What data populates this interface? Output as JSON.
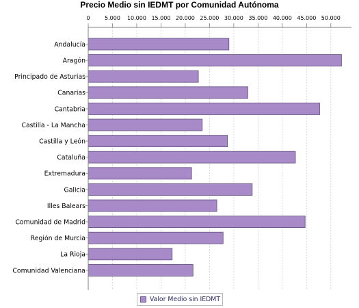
{
  "chart_data": {
    "type": "bar",
    "orientation": "horizontal",
    "title": "Precio Medio sin IEDMT por Comunidad Autónoma",
    "categories": [
      "Andalucía",
      "Aragón",
      "Principado de Asturias",
      "Canarias",
      "Cantabria",
      "Castilla - La Mancha",
      "Castilla y León",
      "Cataluña",
      "Extremadura",
      "Galicia",
      "Illes Balears",
      "Comunidad de Madrid",
      "Región de Murcia",
      "La Rioja",
      "Comunidad Valenciana"
    ],
    "series": [
      {
        "name": "Valor Medio sin IEDMT",
        "color": "#a88ac8",
        "values": [
          29000,
          52200,
          22700,
          32900,
          47700,
          23500,
          28700,
          42700,
          21300,
          33800,
          26500,
          44700,
          27800,
          17300,
          21600
        ]
      }
    ],
    "x_ticks": [
      "0",
      "5.000",
      "10.000",
      "15.000",
      "20.000",
      "25.000",
      "30.000",
      "35.000",
      "40.000",
      "45.000",
      "50.000"
    ],
    "xlim": [
      0,
      55000
    ],
    "tick_step": 5000,
    "axis_position": "top",
    "grid": true,
    "legend_position": "bottom"
  }
}
